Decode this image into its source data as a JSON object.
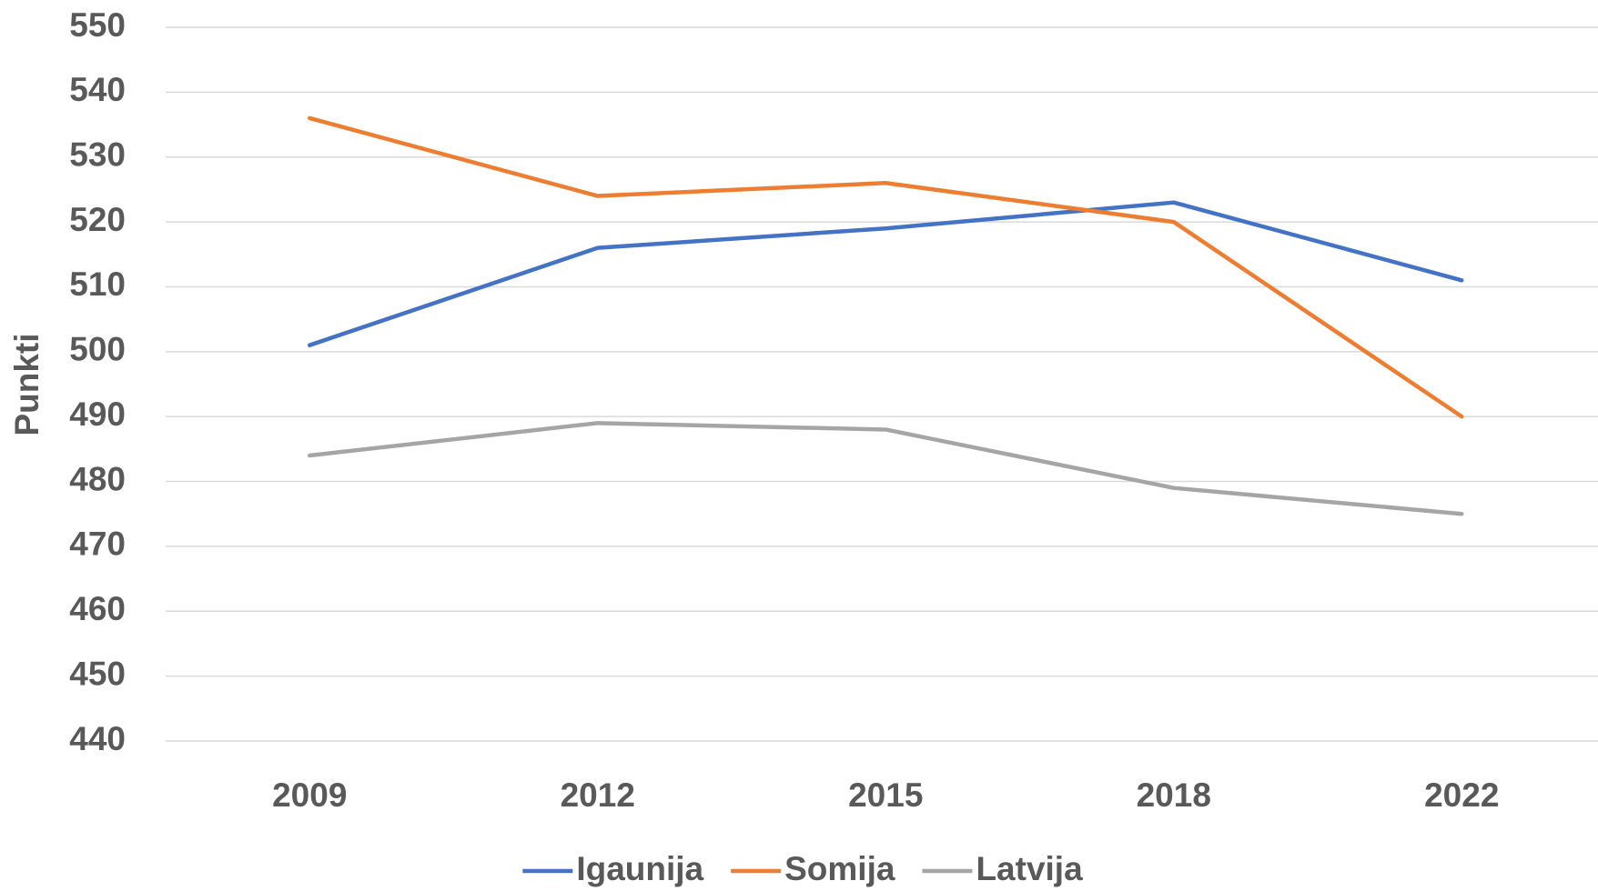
{
  "chart_data": {
    "type": "line",
    "y_label": "Punkti",
    "categories": [
      "2009",
      "2012",
      "2015",
      "2018",
      "2022"
    ],
    "series": [
      {
        "name": "Igaunija",
        "color": "#4472c4",
        "values": [
          501,
          516,
          519,
          523,
          511
        ]
      },
      {
        "name": "Somija",
        "color": "#ed7d31",
        "values": [
          536,
          524,
          526,
          520,
          490
        ]
      },
      {
        "name": "Latvija",
        "color": "#a5a5a5",
        "values": [
          484,
          489,
          488,
          479,
          475
        ]
      }
    ],
    "ylim": [
      440,
      550
    ],
    "yticks": [
      440,
      450,
      460,
      470,
      480,
      490,
      500,
      510,
      520,
      530,
      540,
      550
    ],
    "grid": true,
    "legend": "bottom"
  }
}
